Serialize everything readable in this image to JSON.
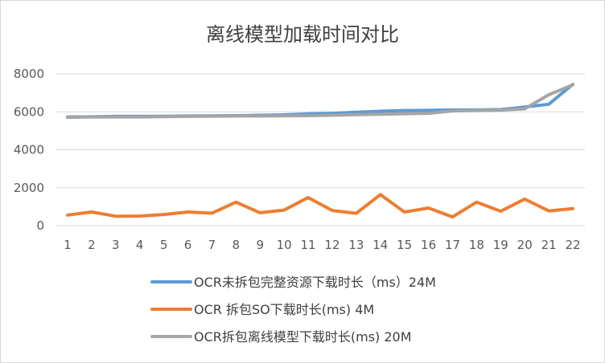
{
  "chart_data": {
    "type": "line",
    "title": "离线模型加载时间对比",
    "xlabel": "",
    "ylabel": "",
    "ylim": [
      0,
      8000
    ],
    "yticks": [
      0,
      2000,
      4000,
      6000,
      8000
    ],
    "grid": true,
    "legend_position": "bottom",
    "categories": [
      "1",
      "2",
      "3",
      "4",
      "5",
      "6",
      "7",
      "8",
      "9",
      "10",
      "11",
      "12",
      "13",
      "14",
      "15",
      "16",
      "17",
      "18",
      "19",
      "20",
      "21",
      "22"
    ],
    "series": [
      {
        "name": "OCR未拆包完整资源下载时长（ms）24M",
        "color": "#5b9bd5",
        "values": [
          5730,
          5740,
          5760,
          5760,
          5770,
          5780,
          5790,
          5800,
          5820,
          5840,
          5890,
          5920,
          5980,
          6030,
          6070,
          6080,
          6100,
          6100,
          6120,
          6250,
          6400,
          7450
        ]
      },
      {
        "name": "OCR 拆包SO下载时长(ms) 4M",
        "color": "#ed7d31",
        "values": [
          560,
          720,
          500,
          510,
          590,
          720,
          660,
          1240,
          680,
          820,
          1480,
          800,
          650,
          1640,
          720,
          930,
          460,
          1240,
          760,
          1400,
          780,
          900
        ]
      },
      {
        "name": "OCR拆包离线模型下载时长(ms) 20M",
        "color": "#a5a5a5",
        "values": [
          5710,
          5730,
          5730,
          5730,
          5750,
          5760,
          5770,
          5780,
          5780,
          5790,
          5800,
          5820,
          5850,
          5870,
          5900,
          5920,
          6050,
          6070,
          6090,
          6160,
          6900,
          7420
        ]
      }
    ]
  }
}
